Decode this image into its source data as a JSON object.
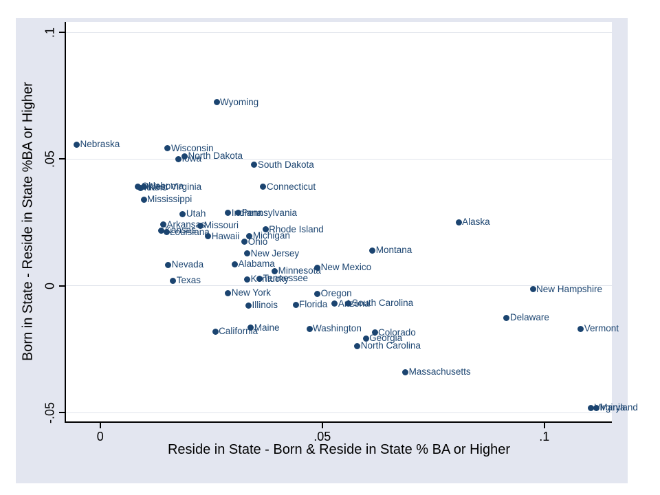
{
  "colors": {
    "page_background": "#ffffff",
    "graph_background": "#e3e6f0",
    "plot_background": "#ffffff",
    "gridline": "#dfe2ea",
    "axis_line": "#000000",
    "tick_text": "#000000",
    "marker": "#1b4470",
    "marker_label": "#1b4470"
  },
  "chart_data": {
    "type": "scatter",
    "title": "",
    "xlabel": "Reside in State - Born & Reside in State % BA or Higher",
    "ylabel": "Born in State - Reside in State %BA or Higher",
    "xlim": [
      -0.0077,
      0.1152
    ],
    "ylim": [
      -0.0535,
      0.1041
    ],
    "grid": "horizontal-only",
    "legend_position": "none",
    "x_ticks": [
      {
        "value": 0,
        "label": "0"
      },
      {
        "value": 0.05,
        "label": ".05"
      },
      {
        "value": 0.1,
        "label": ".1"
      }
    ],
    "y_ticks": [
      {
        "value": -0.05,
        "label": "-.05"
      },
      {
        "value": 0,
        "label": "0"
      },
      {
        "value": 0.05,
        "label": ".05"
      },
      {
        "value": 0.1,
        "label": ".1"
      }
    ],
    "points": [
      {
        "label": "Wyoming",
        "x": 0.0262,
        "y": 0.0724
      },
      {
        "label": "Nebraska",
        "x": -0.0053,
        "y": 0.0557
      },
      {
        "label": "Wisconsin",
        "x": 0.0152,
        "y": 0.0542
      },
      {
        "label": "North Dakota",
        "x": 0.019,
        "y": 0.0512
      },
      {
        "label": "Iowa",
        "x": 0.0176,
        "y": 0.0501
      },
      {
        "label": "South Dakota",
        "x": 0.0347,
        "y": 0.0477
      },
      {
        "label": "Connecticut",
        "x": 0.0367,
        "y": 0.039
      },
      {
        "label": "Oklahoma",
        "x": 0.0085,
        "y": 0.0392
      },
      {
        "label": "West Virginia",
        "x": 0.0098,
        "y": 0.039
      },
      {
        "label": "Idaho",
        "x": 0.0091,
        "y": 0.0387
      },
      {
        "label": "Mississippi",
        "x": 0.0098,
        "y": 0.0341
      },
      {
        "label": "Utah",
        "x": 0.0186,
        "y": 0.0284
      },
      {
        "label": "Indiana",
        "x": 0.0288,
        "y": 0.0287
      },
      {
        "label": "Pennsylvania",
        "x": 0.0311,
        "y": 0.0287
      },
      {
        "label": "Arkansas",
        "x": 0.0142,
        "y": 0.0241
      },
      {
        "label": "Missouri",
        "x": 0.0226,
        "y": 0.0238
      },
      {
        "label": "Kansas",
        "x": 0.0138,
        "y": 0.0219
      },
      {
        "label": "Louisiana",
        "x": 0.0149,
        "y": 0.0211
      },
      {
        "label": "Rhode Island",
        "x": 0.0372,
        "y": 0.0222
      },
      {
        "label": "Hawaii",
        "x": 0.0243,
        "y": 0.0195
      },
      {
        "label": "Michigan",
        "x": 0.0336,
        "y": 0.0197
      },
      {
        "label": "Ohio",
        "x": 0.0325,
        "y": 0.0173
      },
      {
        "label": "Alaska",
        "x": 0.0807,
        "y": 0.0251
      },
      {
        "label": "Montana",
        "x": 0.0613,
        "y": 0.014
      },
      {
        "label": "New Jersey",
        "x": 0.0331,
        "y": 0.0127
      },
      {
        "label": "Alabama",
        "x": 0.0303,
        "y": 0.0086
      },
      {
        "label": "New Mexico",
        "x": 0.0489,
        "y": 0.0072
      },
      {
        "label": "Minnesota",
        "x": 0.0393,
        "y": 0.0059
      },
      {
        "label": "Kentucky",
        "x": 0.0331,
        "y": 0.0026
      },
      {
        "label": "Tennessee",
        "x": 0.0359,
        "y": 0.0029
      },
      {
        "label": "Nevada",
        "x": 0.0153,
        "y": 0.0083
      },
      {
        "label": "Texas",
        "x": 0.0164,
        "y": 0.0021
      },
      {
        "label": "New York",
        "x": 0.0288,
        "y": -0.0028
      },
      {
        "label": "Oregon",
        "x": 0.0489,
        "y": -0.0031
      },
      {
        "label": "Illinois",
        "x": 0.0334,
        "y": -0.0077
      },
      {
        "label": "Florida",
        "x": 0.044,
        "y": -0.0074
      },
      {
        "label": "Arizona",
        "x": 0.0528,
        "y": -0.0071
      },
      {
        "label": "South Carolina",
        "x": 0.0559,
        "y": -0.0069
      },
      {
        "label": "New Hampshire",
        "x": 0.0974,
        "y": -0.0014
      },
      {
        "label": "Delaware",
        "x": 0.0915,
        "y": -0.0126
      },
      {
        "label": "Vermont",
        "x": 0.1082,
        "y": -0.0169
      },
      {
        "label": "Maine",
        "x": 0.0339,
        "y": -0.0166
      },
      {
        "label": "California",
        "x": 0.0259,
        "y": -0.018
      },
      {
        "label": "Washington",
        "x": 0.0471,
        "y": -0.0169
      },
      {
        "label": "Colorado",
        "x": 0.0618,
        "y": -0.0185
      },
      {
        "label": "Georgia",
        "x": 0.0598,
        "y": -0.0207
      },
      {
        "label": "North Carolina",
        "x": 0.0579,
        "y": -0.0237
      },
      {
        "label": "Massachusetts",
        "x": 0.0687,
        "y": -0.034
      },
      {
        "label": "Virginia",
        "x": 0.1105,
        "y": -0.0481
      },
      {
        "label": "Maryland",
        "x": 0.1117,
        "y": -0.0481
      }
    ]
  }
}
